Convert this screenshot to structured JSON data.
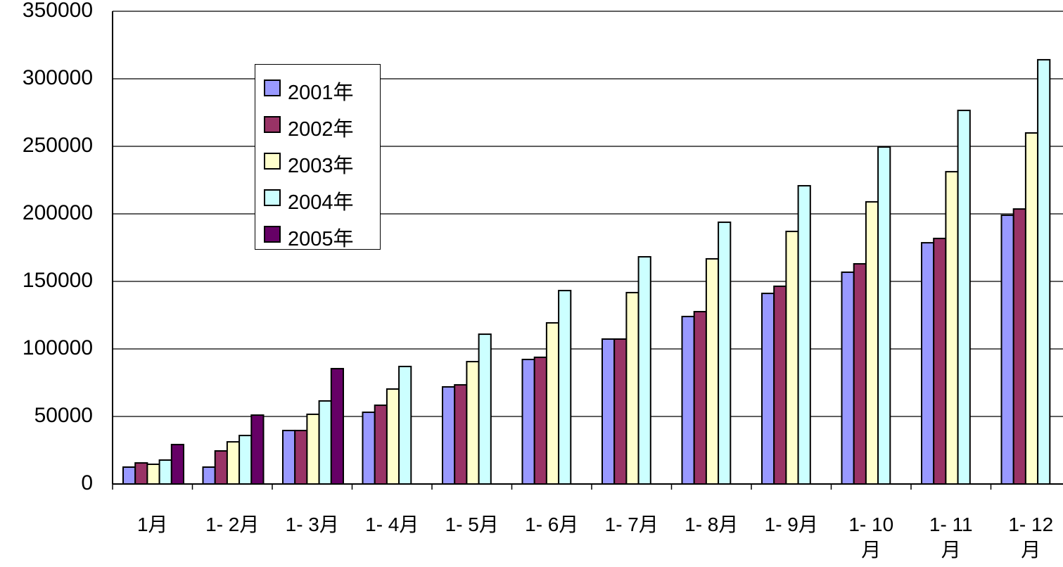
{
  "chart_data": {
    "type": "bar",
    "categories": [
      "1月",
      "1- 2月",
      "1- 3月",
      "1- 4月",
      "1- 5月",
      "1- 6月",
      "1- 7月",
      "1- 8月",
      "1- 9月",
      "1- 10月",
      "1- 11月",
      "1- 12月"
    ],
    "series": [
      {
        "name": "2001年",
        "color": "#9999ff",
        "values": [
          12500,
          12500,
          39600,
          53100,
          71900,
          92200,
          107300,
          124000,
          141100,
          156800,
          178600,
          199000
        ]
      },
      {
        "name": "2002年",
        "color": "#993366",
        "values": [
          15600,
          24500,
          39600,
          58300,
          73400,
          93800,
          107300,
          127600,
          146400,
          163000,
          181800,
          203600
        ]
      },
      {
        "name": "2003年",
        "color": "#ffffcc",
        "values": [
          14600,
          31200,
          51600,
          70300,
          90600,
          119300,
          141700,
          166700,
          187000,
          208900,
          231200,
          259900
        ]
      },
      {
        "name": "2004年",
        "color": "#ccffff",
        "values": [
          17700,
          35900,
          61500,
          87000,
          110900,
          143200,
          168200,
          193800,
          220800,
          249500,
          276600,
          314100
        ]
      },
      {
        "name": "2005年",
        "color": "#660066",
        "values": [
          29200,
          51000,
          85400,
          null,
          null,
          null,
          null,
          null,
          null,
          null,
          null,
          null
        ]
      }
    ],
    "ylim": [
      0,
      350000
    ],
    "yticks": [
      0,
      50000,
      100000,
      150000,
      200000,
      250000,
      300000,
      350000
    ],
    "grid": true
  }
}
